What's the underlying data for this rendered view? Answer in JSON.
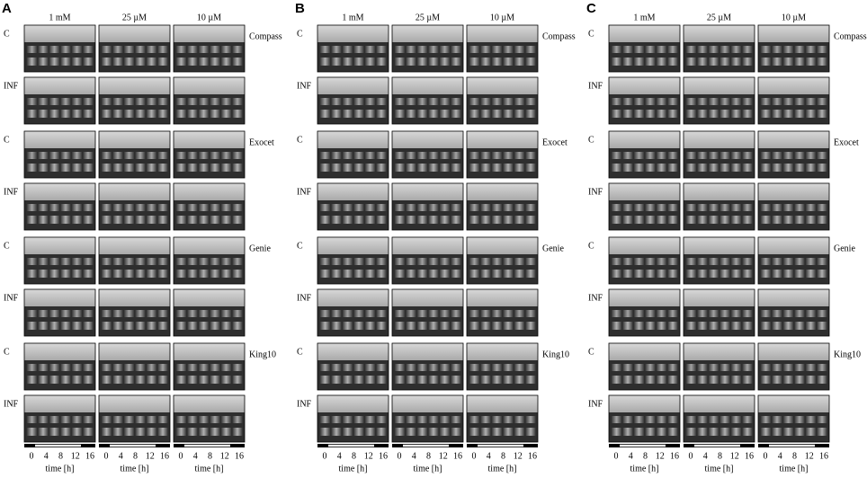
{
  "panels": [
    {
      "label": "A",
      "concentrations": [
        "1 mM",
        "25 µM",
        "10 µM"
      ],
      "groups": [
        {
          "name": "Compass",
          "rows": [
            "C",
            "INF"
          ]
        },
        {
          "name": "Exocet",
          "rows": [
            "C",
            "INF"
          ]
        },
        {
          "name": "Genie",
          "rows": [
            "C",
            "INF"
          ]
        },
        {
          "name": "King10",
          "rows": [
            "C",
            "INF"
          ]
        }
      ],
      "time_ticks": [
        "0",
        "4",
        "8",
        "12",
        "16"
      ],
      "time_label": "time [h]"
    },
    {
      "label": "B",
      "concentrations": [
        "1 mM",
        "25 µM",
        "10 µM"
      ],
      "groups": [
        {
          "name": "Compass",
          "rows": [
            "C",
            "INF"
          ]
        },
        {
          "name": "Exocet",
          "rows": [
            "C",
            "INF"
          ]
        },
        {
          "name": "Genie",
          "rows": [
            "C",
            "INF"
          ]
        },
        {
          "name": "King10",
          "rows": [
            "C",
            "INF"
          ]
        }
      ],
      "time_ticks": [
        "0",
        "4",
        "8",
        "12",
        "16"
      ],
      "time_label": "time [h]"
    },
    {
      "label": "C",
      "concentrations": [
        "1 mM",
        "25 µM",
        "10 µM"
      ],
      "groups": [
        {
          "name": "Compass",
          "rows": [
            "C",
            "INF"
          ]
        },
        {
          "name": "Exocet",
          "rows": [
            "C",
            "INF"
          ]
        },
        {
          "name": "Genie",
          "rows": [
            "C",
            "INF"
          ]
        },
        {
          "name": "King10",
          "rows": [
            "C",
            "INF"
          ]
        }
      ],
      "time_ticks": [
        "0",
        "4",
        "8",
        "12",
        "16"
      ],
      "time_label": "time [h]"
    }
  ]
}
